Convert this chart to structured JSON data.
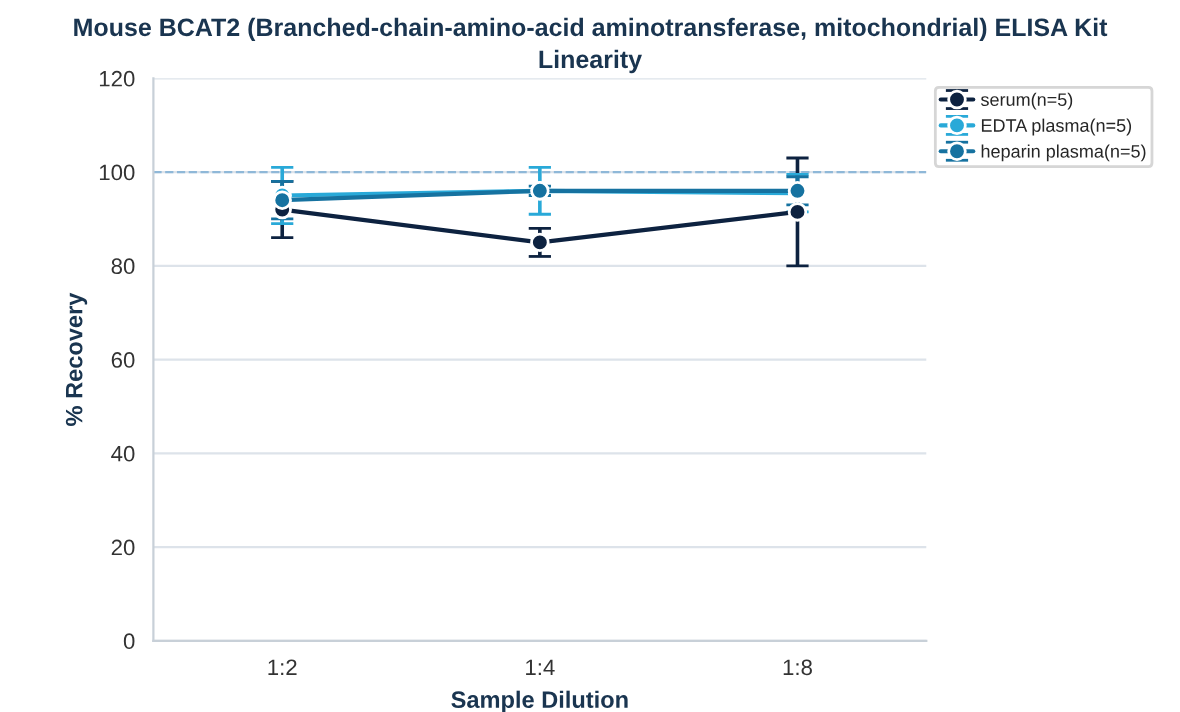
{
  "chart_data": {
    "type": "line",
    "title": "Mouse BCAT2 (Branched-chain-amino-acid aminotransferase, mitochondrial) ELISA Kit",
    "subtitle": "Linearity",
    "xlabel": "Sample Dilution",
    "ylabel": "% Recovery",
    "categories": [
      "1:2",
      "1:4",
      "1:8"
    ],
    "series": [
      {
        "name": "serum(n=5)",
        "color": "#0d2240",
        "values": [
          92,
          85,
          91.5
        ],
        "errors": [
          6,
          3,
          11.5
        ]
      },
      {
        "name": "EDTA plasma(n=5)",
        "color": "#29a9d8",
        "values": [
          95,
          96,
          95.5
        ],
        "errors": [
          6,
          5,
          4
        ]
      },
      {
        "name": "heparin plasma(n=5)",
        "color": "#1672a0",
        "values": [
          94,
          96,
          96
        ],
        "errors": [
          4,
          1,
          3
        ]
      }
    ],
    "ylim": [
      0,
      120
    ],
    "yticks": [
      0,
      20,
      40,
      60,
      80,
      100,
      120
    ],
    "grid": "y",
    "marker": "circle",
    "line_style": "solid",
    "legend": "top right",
    "ref_lines": [
      {
        "axis": "y",
        "value": 100,
        "color": "#8fb8d8",
        "line_style": "dashed"
      }
    ]
  }
}
